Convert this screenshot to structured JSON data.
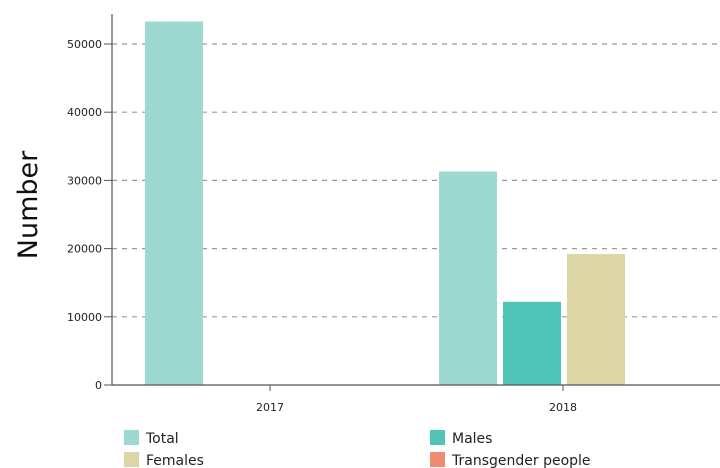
{
  "chart_data": {
    "type": "bar",
    "title": "",
    "xlabel": "",
    "ylabel": "Number",
    "ylim": [
      0,
      55000
    ],
    "yticks": [
      0,
      10000,
      20000,
      30000,
      40000,
      50000
    ],
    "categories": [
      "2017",
      "2018"
    ],
    "grid": "horizontal dashed",
    "legend_position": "bottom",
    "series": [
      {
        "name": "Total",
        "color": "#9dd8d1",
        "values": [
          53300,
          31300
        ]
      },
      {
        "name": "Males",
        "color": "#4fc4b7",
        "values": [
          null,
          12200
        ]
      },
      {
        "name": "Females",
        "color": "#dcd5a6",
        "values": [
          null,
          19200
        ]
      },
      {
        "name": "Transgender people",
        "color": "#f08a73",
        "values": [
          null,
          null
        ]
      }
    ]
  }
}
